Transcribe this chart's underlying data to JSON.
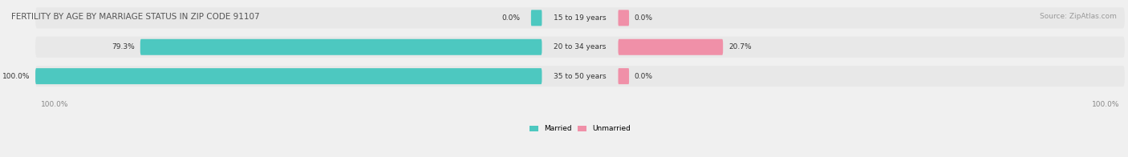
{
  "title": "FERTILITY BY AGE BY MARRIAGE STATUS IN ZIP CODE 91107",
  "source": "Source: ZipAtlas.com",
  "background_color": "#f0f0f0",
  "bar_bg_color": "#e8e8e8",
  "married_color": "#4dc8c0",
  "unmarried_color": "#f090a8",
  "rows": [
    {
      "label": "15 to 19 years",
      "married_pct": 0.0,
      "unmarried_pct": 0.0,
      "married_label": "0.0%",
      "unmarried_label": "0.0%"
    },
    {
      "label": "20 to 34 years",
      "married_pct": 79.3,
      "unmarried_pct": 20.7,
      "married_label": "79.3%",
      "unmarried_label": "20.7%"
    },
    {
      "label": "35 to 50 years",
      "married_pct": 100.0,
      "unmarried_pct": 0.0,
      "married_label": "100.0%",
      "unmarried_label": "0.0%"
    }
  ],
  "x_left_label": "100.0%",
  "x_right_label": "100.0%",
  "legend_married": "Married",
  "legend_unmarried": "Unmarried"
}
